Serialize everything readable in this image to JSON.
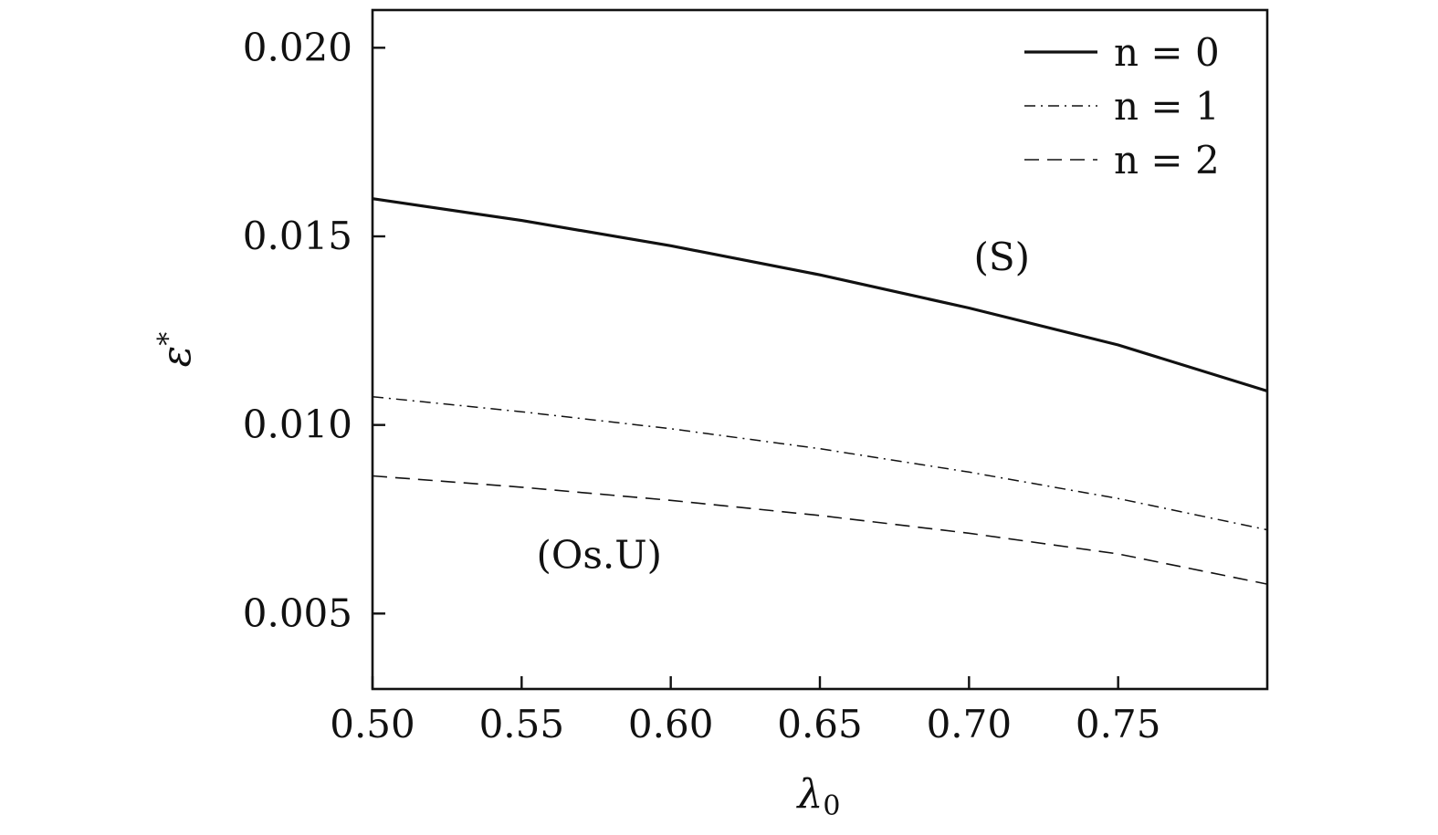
{
  "chart_data": {
    "type": "line",
    "xlabel": "λ",
    "xlabel_sub": "0",
    "ylabel": "ε",
    "ylabel_sup": "*",
    "xlim": [
      0.5,
      0.8
    ],
    "ylim": [
      0.003,
      0.021
    ],
    "xticks": [
      0.5,
      0.55,
      0.6,
      0.65,
      0.7,
      0.75
    ],
    "xtick_labels": [
      "0.50",
      "0.55",
      "0.60",
      "0.65",
      "0.70",
      "0.75"
    ],
    "yticks": [
      0.005,
      0.01,
      0.015,
      0.02
    ],
    "ytick_labels": [
      "0.005",
      "0.010",
      "0.015",
      "0.020"
    ],
    "grid": false,
    "legend_position": "top-right",
    "x": [
      0.5,
      0.55,
      0.6,
      0.65,
      0.7,
      0.75,
      0.8
    ],
    "series": [
      {
        "name": "n = 0",
        "style": "solid",
        "values": [
          0.016,
          0.01542,
          0.01475,
          0.01398,
          0.0131,
          0.01212,
          0.0109
        ]
      },
      {
        "name": "n = 1",
        "style": "dashdot",
        "values": [
          0.01075,
          0.01035,
          0.0099,
          0.00937,
          0.00875,
          0.00805,
          0.00722
        ]
      },
      {
        "name": "n = 2",
        "style": "dashed",
        "values": [
          0.00865,
          0.00835,
          0.008,
          0.0076,
          0.00713,
          0.00658,
          0.00578
        ]
      }
    ],
    "annotations": [
      {
        "text": "(S)",
        "x": 0.711,
        "y": 0.0141
      },
      {
        "text": "(Os.U)",
        "x": 0.576,
        "y": 0.0062
      }
    ]
  }
}
